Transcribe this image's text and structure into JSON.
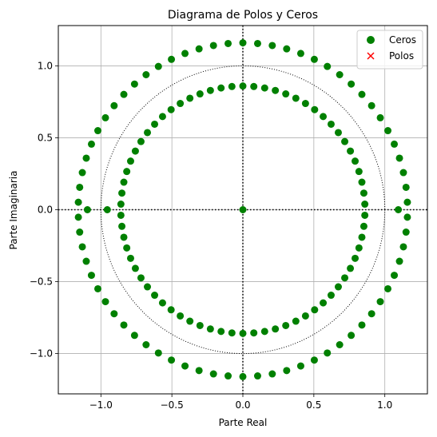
{
  "chart_data": {
    "type": "scatter",
    "title": "Diagrama de Polos y Ceros",
    "xlabel": "Parte Real",
    "ylabel": "Parte Imaginaria",
    "xlim": [
      -1.3,
      1.3
    ],
    "ylim": [
      -1.28,
      1.28
    ],
    "xticks": [
      -1.0,
      -0.5,
      0.0,
      0.5,
      1.0
    ],
    "xtick_labels": [
      "−1.0",
      "−0.5",
      "0.0",
      "0.5",
      "1.0"
    ],
    "yticks": [
      -1.0,
      -0.5,
      0.0,
      0.5,
      1.0
    ],
    "ytick_labels": [
      "−1.0",
      "−0.5",
      "0.0",
      "0.5",
      "1.0"
    ],
    "grid": true,
    "legend_position": "top-right",
    "unit_circle": {
      "radius": 1.0,
      "style": "dotted"
    },
    "reference_lines": {
      "x": 0,
      "y": 0,
      "style": "dotted"
    },
    "series": [
      {
        "name": "Ceros",
        "marker": "circle",
        "color": "#008000",
        "rings": [
          {
            "radius": 1.16,
            "count": 70
          },
          {
            "radius": 0.86,
            "count": 70
          }
        ],
        "points": [
          {
            "x": 0.0,
            "y": 0.0
          },
          {
            "x": 1.095,
            "y": 0.0
          },
          {
            "x": -1.095,
            "y": 0.0
          },
          {
            "x": -0.955,
            "y": 0.0
          }
        ]
      },
      {
        "name": "Polos",
        "marker": "x",
        "color": "#ff0000",
        "points": []
      }
    ]
  }
}
